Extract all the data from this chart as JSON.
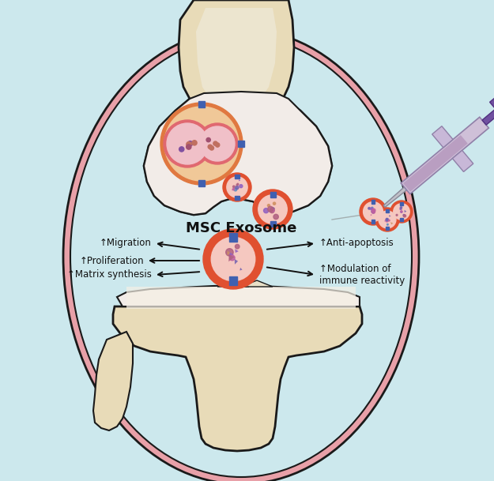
{
  "background_color": "#cce8ed",
  "title": "MSC Exosome",
  "title_fontsize": 13,
  "title_fontweight": "bold",
  "labels_left": [
    "↑Migration",
    "↑Proliferation",
    "↑Matrix synthesis"
  ],
  "labels_right": [
    "↑Anti-apoptosis",
    "↑Modulation of\nimmune reactivity"
  ],
  "bone_fill": "#e8dbb8",
  "bone_outline": "#1a1a1a",
  "pink_membrane": "#e8a0a8",
  "exo_outer": "#e05030",
  "exo_inner": "#f0b8b8",
  "exo_bg": "#f5c8c0",
  "blue_receptor": "#4060b0",
  "arrow_color": "#111111",
  "syringe_barrel": "#cfc0d8",
  "syringe_liquid": "#b090b8",
  "syringe_plunger": "#7050a0"
}
